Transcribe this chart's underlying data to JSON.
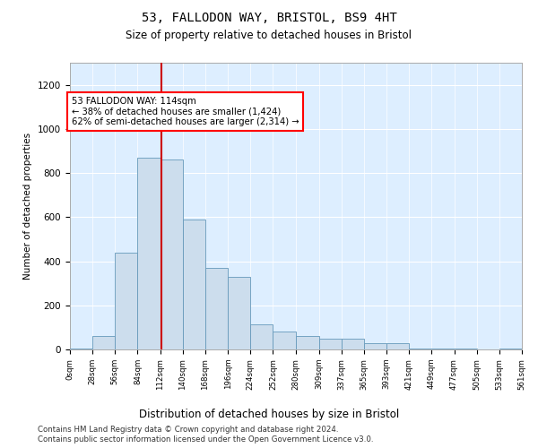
{
  "title_line1": "53, FALLODON WAY, BRISTOL, BS9 4HT",
  "title_line2": "Size of property relative to detached houses in Bristol",
  "xlabel": "Distribution of detached houses by size in Bristol",
  "ylabel": "Number of detached properties",
  "annotation_line1": "53 FALLODON WAY: 114sqm",
  "annotation_line2": "← 38% of detached houses are smaller (1,424)",
  "annotation_line3": "62% of semi-detached houses are larger (2,314) →",
  "property_size": 114,
  "bar_color": "#ccdded",
  "bar_edge_color": "#6699bb",
  "vline_color": "#cc0000",
  "plot_bg_color": "#ddeeff",
  "bin_edges": [
    0,
    28,
    56,
    84,
    112,
    140,
    168,
    196,
    224,
    252,
    280,
    309,
    337,
    365,
    393,
    421,
    449,
    477,
    505,
    533,
    561
  ],
  "bar_heights": [
    5,
    60,
    440,
    870,
    860,
    590,
    370,
    330,
    115,
    80,
    60,
    50,
    50,
    30,
    30,
    5,
    5,
    5,
    0,
    5
  ],
  "ylim": [
    0,
    1300
  ],
  "yticks": [
    0,
    200,
    400,
    600,
    800,
    1000,
    1200
  ],
  "footer_line1": "Contains HM Land Registry data © Crown copyright and database right 2024.",
  "footer_line2": "Contains public sector information licensed under the Open Government Licence v3.0."
}
